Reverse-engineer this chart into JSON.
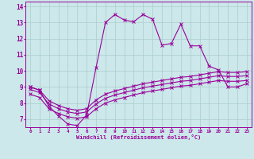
{
  "background_color": "#cce8ea",
  "line_color": "#990099",
  "grid_color": "#aacccc",
  "xlabel": "Windchill (Refroidissement éolien,°C)",
  "xlim": [
    -0.5,
    23.5
  ],
  "ylim": [
    6.5,
    14.3
  ],
  "xticks": [
    0,
    1,
    2,
    3,
    4,
    5,
    6,
    7,
    8,
    9,
    10,
    11,
    12,
    13,
    14,
    15,
    16,
    17,
    18,
    19,
    20,
    21,
    22,
    23
  ],
  "yticks": [
    7,
    8,
    9,
    10,
    11,
    12,
    13,
    14
  ],
  "line1": {
    "x": [
      0,
      1,
      2,
      3,
      4,
      5,
      6,
      7,
      8,
      9,
      10,
      11,
      12,
      13,
      14,
      15,
      16,
      17,
      18,
      19,
      20,
      21,
      22,
      23
    ],
    "y": [
      9.0,
      8.8,
      7.8,
      7.2,
      6.7,
      6.6,
      7.25,
      10.2,
      13.0,
      13.5,
      13.15,
      13.05,
      13.5,
      13.2,
      11.6,
      11.7,
      12.9,
      11.55,
      11.55,
      10.3,
      10.05,
      9.0,
      9.0,
      9.2
    ]
  },
  "line2": {
    "x": [
      0,
      1,
      2,
      3,
      4,
      5,
      6,
      7,
      8,
      9,
      10,
      11,
      12,
      13,
      14,
      15,
      16,
      17,
      18,
      19,
      20,
      21,
      22,
      23
    ],
    "y": [
      9.0,
      8.8,
      8.15,
      7.85,
      7.65,
      7.55,
      7.65,
      8.2,
      8.55,
      8.75,
      8.9,
      9.05,
      9.2,
      9.3,
      9.4,
      9.5,
      9.6,
      9.65,
      9.75,
      9.85,
      9.95,
      9.9,
      9.9,
      9.95
    ]
  },
  "line3": {
    "x": [
      0,
      1,
      2,
      3,
      4,
      5,
      6,
      7,
      8,
      9,
      10,
      11,
      12,
      13,
      14,
      15,
      16,
      17,
      18,
      19,
      20,
      21,
      22,
      23
    ],
    "y": [
      8.85,
      8.65,
      7.95,
      7.65,
      7.45,
      7.35,
      7.45,
      7.95,
      8.3,
      8.5,
      8.65,
      8.8,
      8.95,
      9.05,
      9.15,
      9.25,
      9.35,
      9.4,
      9.5,
      9.6,
      9.7,
      9.65,
      9.65,
      9.7
    ]
  },
  "line4": {
    "x": [
      0,
      1,
      2,
      3,
      4,
      5,
      6,
      7,
      8,
      9,
      10,
      11,
      12,
      13,
      14,
      15,
      16,
      17,
      18,
      19,
      20,
      21,
      22,
      23
    ],
    "y": [
      8.55,
      8.35,
      7.65,
      7.35,
      7.15,
      7.05,
      7.15,
      7.65,
      8.0,
      8.2,
      8.35,
      8.5,
      8.65,
      8.75,
      8.85,
      8.95,
      9.05,
      9.1,
      9.2,
      9.3,
      9.4,
      9.35,
      9.35,
      9.4
    ]
  }
}
